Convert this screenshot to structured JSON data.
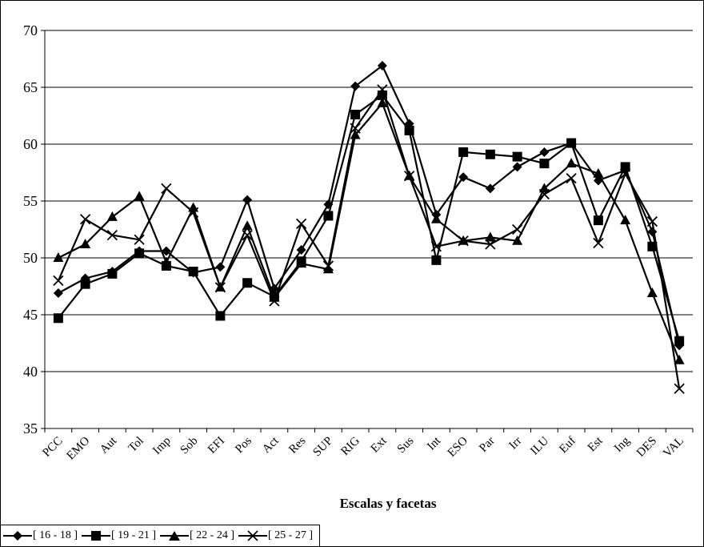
{
  "chart_data": {
    "type": "line",
    "xlabel": "Escalas y facetas",
    "ylabel": "",
    "title": "",
    "ylim": [
      35,
      70
    ],
    "yticks": [
      35,
      40,
      45,
      50,
      55,
      60,
      65,
      70
    ],
    "grid": true,
    "legend_position": "bottom-left",
    "categories": [
      "PCC",
      "EMO",
      "Aut",
      "Tol",
      "Imp",
      "Sob",
      "EFI",
      "Pos",
      "Act",
      "Res",
      "SUP",
      "RIG",
      "Ext",
      "Sus",
      "Int",
      "ESO",
      "Par",
      "Irr",
      "ILU",
      "Euf",
      "Est",
      "Ing",
      "DES",
      "VAL"
    ],
    "series": [
      {
        "name": "[ 16 - 18 ]",
        "marker": "diamond",
        "values": [
          46.9,
          48.2,
          48.8,
          50.6,
          50.6,
          48.7,
          49.2,
          55.1,
          47.3,
          50.7,
          54.7,
          65.1,
          66.9,
          61.8,
          53.8,
          57.1,
          56.1,
          58.0,
          59.3,
          60.1,
          56.8,
          57.7,
          52.3,
          42.3
        ]
      },
      {
        "name": "[ 19 - 21 ]",
        "marker": "square",
        "values": [
          44.7,
          47.7,
          48.6,
          50.4,
          49.3,
          48.8,
          44.9,
          47.8,
          46.6,
          49.7,
          53.7,
          62.6,
          64.3,
          61.2,
          49.8,
          59.3,
          59.1,
          58.9,
          58.3,
          60.1,
          53.3,
          58.0,
          51.0,
          42.7
        ]
      },
      {
        "name": "[ 22 - 24 ]",
        "marker": "triangle",
        "values": [
          50.0,
          51.2,
          53.6,
          55.4,
          49.6,
          54.4,
          47.4,
          52.8,
          46.5,
          49.5,
          49.0,
          60.8,
          63.6,
          57.2,
          53.4,
          51.5,
          51.8,
          51.5,
          56.1,
          58.3,
          57.4,
          53.3,
          46.9,
          41.0
        ]
      },
      {
        "name": "[ 25 - 27 ]",
        "marker": "x",
        "values": [
          48.0,
          53.4,
          52.0,
          51.6,
          56.1,
          54.0,
          47.4,
          52.0,
          46.2,
          53.0,
          49.3,
          61.4,
          64.8,
          57.2,
          51.0,
          51.5,
          51.2,
          52.5,
          55.6,
          57.0,
          51.3,
          57.4,
          53.2,
          38.5
        ]
      }
    ]
  }
}
